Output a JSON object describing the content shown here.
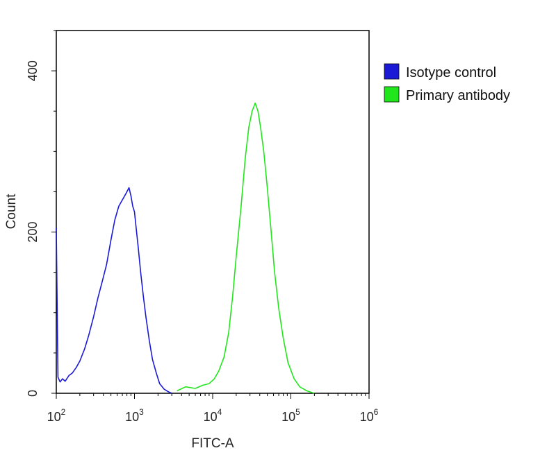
{
  "chart_data": {
    "type": "line",
    "title": "",
    "xlabel": "FITC-A",
    "ylabel": "Count",
    "x_scale": "log",
    "xlim": [
      100,
      1000000
    ],
    "ylim": [
      0,
      450
    ],
    "x_ticks": [
      {
        "value": 100,
        "base": "10",
        "exp": "2"
      },
      {
        "value": 1000,
        "base": "10",
        "exp": "3"
      },
      {
        "value": 10000,
        "base": "10",
        "exp": "4"
      },
      {
        "value": 100000,
        "base": "10",
        "exp": "5"
      },
      {
        "value": 1000000,
        "base": "10",
        "exp": "6"
      }
    ],
    "y_ticks": [
      0,
      200,
      400
    ],
    "grid": false,
    "legend_position": "right",
    "series": [
      {
        "name": "Isotype control",
        "color": "#1a1ad6",
        "x": [
          100,
          105,
          112,
          120,
          130,
          145,
          160,
          180,
          200,
          230,
          260,
          300,
          340,
          390,
          440,
          500,
          560,
          630,
          700,
          780,
          850,
          900,
          950,
          1000,
          1050,
          1120,
          1200,
          1300,
          1400,
          1550,
          1700,
          1900,
          2100,
          2400,
          2700,
          3000
        ],
        "y": [
          205,
          20,
          14,
          18,
          15,
          22,
          25,
          32,
          40,
          55,
          72,
          95,
          118,
          140,
          160,
          190,
          215,
          232,
          240,
          248,
          255,
          245,
          232,
          225,
          205,
          180,
          150,
          120,
          95,
          65,
          42,
          25,
          12,
          5,
          2,
          0
        ]
      },
      {
        "name": "Primary antibody",
        "color": "#22e61c",
        "x": [
          3500,
          4500,
          6000,
          7500,
          9000,
          10500,
          12000,
          14000,
          16000,
          18000,
          20000,
          23000,
          26000,
          29000,
          32000,
          35000,
          38000,
          41000,
          45000,
          50000,
          56000,
          62000,
          70000,
          80000,
          92000,
          110000,
          130000,
          160000,
          200000
        ],
        "y": [
          3,
          8,
          6,
          10,
          12,
          18,
          28,
          45,
          75,
          120,
          170,
          230,
          290,
          330,
          350,
          360,
          350,
          330,
          300,
          255,
          200,
          150,
          105,
          68,
          38,
          18,
          8,
          3,
          0
        ]
      }
    ]
  }
}
